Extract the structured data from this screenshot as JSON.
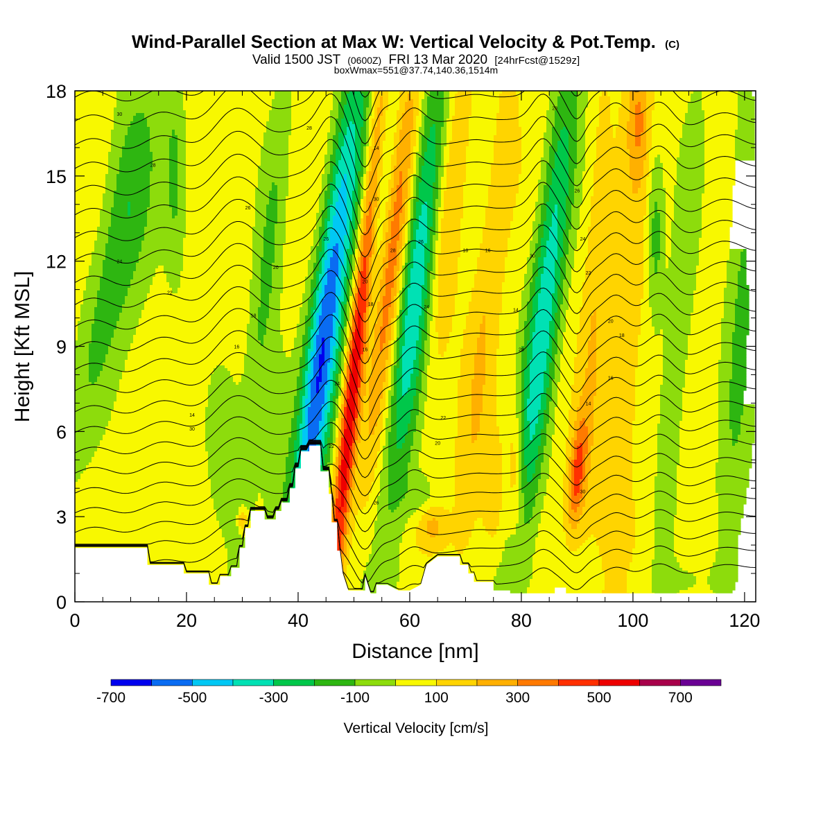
{
  "title": {
    "main": "Wind-Parallel Section at Max W: Vertical Velocity & Pot.Temp.",
    "main_tag": "(C)",
    "line2_a": "Valid 1500 JST",
    "line2_b": "(0600Z)",
    "line2_c": "FRI 13 Mar 2020",
    "line2_d": "[24hrFcst@1529z]",
    "line3": "boxWmax=551@37.74,140.36,1514m"
  },
  "colorbar": {
    "label": "Vertical Velocity [cm/s]",
    "tick_labels": [
      "-700",
      "-500",
      "-300",
      "-100",
      "100",
      "300",
      "500",
      "700"
    ],
    "colors": [
      "#0000ee",
      "#0a6cf2",
      "#00c8f4",
      "#00e1b4",
      "#00c74a",
      "#2eb611",
      "#8ddc0c",
      "#f8f800",
      "#ffd400",
      "#ffb000",
      "#ff7a00",
      "#ff3000",
      "#ee0000",
      "#a8004a",
      "#6a0094"
    ]
  },
  "chart_data": {
    "type": "heatmap",
    "xlabel": "Distance [nm]",
    "ylabel": "Height [Kft MSL]",
    "xlim": [
      0,
      122
    ],
    "ylim": [
      0,
      18
    ],
    "x_ticks": [
      0,
      20,
      40,
      60,
      80,
      100,
      120
    ],
    "y_ticks": [
      0,
      3,
      6,
      9,
      12,
      15,
      18
    ],
    "vertical_velocity_bins_cm_s": [
      -800,
      -700,
      -600,
      -500,
      -400,
      -300,
      -200,
      -100,
      0,
      100,
      200,
      300,
      400,
      500,
      600,
      700,
      800
    ],
    "max_w": {
      "value_cm_s": 551,
      "lat": 37.74,
      "lon": 140.36,
      "height_m": 1514
    },
    "terrain_kft": [
      [
        0,
        1.9
      ],
      [
        13,
        1.9
      ],
      [
        13,
        1.3
      ],
      [
        19.5,
        1.3
      ],
      [
        19.5,
        1.0
      ],
      [
        24,
        1.0
      ],
      [
        24,
        0.6
      ],
      [
        26,
        0.6
      ],
      [
        26,
        0.9
      ],
      [
        28,
        0.9
      ],
      [
        28,
        1.2
      ],
      [
        29.5,
        1.2
      ],
      [
        29.5,
        1.9
      ],
      [
        30.5,
        1.9
      ],
      [
        30.5,
        2.6
      ],
      [
        31.5,
        2.6
      ],
      [
        31.5,
        3.2
      ],
      [
        34,
        3.2
      ],
      [
        34,
        2.9
      ],
      [
        36,
        2.9
      ],
      [
        36,
        3.2
      ],
      [
        37,
        3.2
      ],
      [
        37,
        3.5
      ],
      [
        38.5,
        3.5
      ],
      [
        38.5,
        4.0
      ],
      [
        39.5,
        4.0
      ],
      [
        39.5,
        4.7
      ],
      [
        40.5,
        4.7
      ],
      [
        40.5,
        5.3
      ],
      [
        42,
        5.3
      ],
      [
        42,
        5.5
      ],
      [
        44,
        5.5
      ],
      [
        44,
        4.6
      ],
      [
        45.5,
        4.6
      ],
      [
        45.5,
        3.8
      ],
      [
        46,
        3.8
      ],
      [
        46,
        2.8
      ],
      [
        47,
        2.8
      ],
      [
        47,
        1.8
      ],
      [
        47.5,
        1.8
      ],
      [
        48,
        1.0
      ],
      [
        49,
        0.4
      ],
      [
        52,
        0.4
      ],
      [
        52,
        0.9
      ],
      [
        53,
        0.3
      ],
      [
        54,
        0.3
      ],
      [
        54,
        0.6
      ],
      [
        56,
        0.6
      ],
      [
        58,
        0.4
      ],
      [
        60,
        0.4
      ],
      [
        62,
        0.6
      ],
      [
        63,
        1.3
      ],
      [
        65,
        1.6
      ],
      [
        69,
        1.6
      ],
      [
        69,
        1.3
      ],
      [
        70.5,
        1.3
      ],
      [
        70.5,
        1.0
      ],
      [
        71.5,
        1.0
      ],
      [
        71.5,
        0.7
      ],
      [
        75,
        0.7
      ],
      [
        75,
        0.4
      ],
      [
        78,
        0.4
      ],
      [
        78,
        0.3
      ],
      [
        86,
        0.3
      ],
      [
        86,
        0.5
      ],
      [
        88,
        0.5
      ],
      [
        88,
        0.3
      ],
      [
        122,
        0.3
      ]
    ],
    "w_features": [
      {
        "x": 6,
        "y": 11,
        "w": 4,
        "ht": 7,
        "tilt": 1.0,
        "a": -160
      },
      {
        "x": 10,
        "y": 14,
        "w": 5,
        "ht": 5,
        "tilt": 0.0,
        "a": -130
      },
      {
        "x": 18,
        "y": 15,
        "w": 2,
        "ht": 4,
        "tilt": 0.0,
        "a": -160
      },
      {
        "x": 27,
        "y": 5,
        "w": 3,
        "ht": 3,
        "tilt": 0.0,
        "a": -140
      },
      {
        "x": 30,
        "y": 2.9,
        "w": 0.8,
        "ht": 0.4,
        "tilt": 0.0,
        "a": 240
      },
      {
        "x": 34,
        "y": 11,
        "w": 2.5,
        "ht": 8,
        "tilt": 0.5,
        "a": -170
      },
      {
        "x": 36,
        "y": 6,
        "w": 3,
        "ht": 4,
        "tilt": 0.0,
        "a": -120
      },
      {
        "x": 44.5,
        "y": 9,
        "w": 3,
        "ht": 10,
        "tilt": 0.62,
        "a": -640
      },
      {
        "x": 50.5,
        "y": 9,
        "w": 1.8,
        "ht": 10,
        "tilt": 0.5,
        "a": 760
      },
      {
        "x": 52.5,
        "y": 12,
        "w": 3,
        "ht": 8,
        "tilt": 0.55,
        "a": -340
      },
      {
        "x": 57,
        "y": 12,
        "w": 2.8,
        "ht": 7,
        "tilt": 0.55,
        "a": 420
      },
      {
        "x": 61,
        "y": 11.5,
        "w": 3.5,
        "ht": 8,
        "tilt": 0.55,
        "a": -480
      },
      {
        "x": 64,
        "y": 2.7,
        "w": 2.5,
        "ht": 0.8,
        "tilt": 0.0,
        "a": 170
      },
      {
        "x": 67,
        "y": 14,
        "w": 2.5,
        "ht": 6,
        "tilt": 0.5,
        "a": 200
      },
      {
        "x": 62,
        "y": 3.7,
        "w": 3,
        "ht": 0.8,
        "tilt": 0.0,
        "a": -120
      },
      {
        "x": 73,
        "y": 9,
        "w": 2.5,
        "ht": 9,
        "tilt": 0.5,
        "a": 130
      },
      {
        "x": 75,
        "y": 4,
        "w": 2,
        "ht": 2,
        "tilt": 0.0,
        "a": 130
      },
      {
        "x": 79,
        "y": 4.5,
        "w": 1.5,
        "ht": 2.5,
        "tilt": 0.0,
        "a": 230
      },
      {
        "x": 84,
        "y": 10,
        "w": 3,
        "ht": 9,
        "tilt": 0.55,
        "a": -430
      },
      {
        "x": 90,
        "y": 4.5,
        "w": 1.5,
        "ht": 2.0,
        "tilt": 0.4,
        "a": 360
      },
      {
        "x": 93,
        "y": 10,
        "w": 2,
        "ht": 8,
        "tilt": 0.2,
        "a": 130
      },
      {
        "x": 98,
        "y": 7,
        "w": 3,
        "ht": 10,
        "tilt": 0.3,
        "a": 130
      },
      {
        "x": 101,
        "y": 17,
        "w": 2,
        "ht": 2,
        "tilt": 0.0,
        "a": 200
      },
      {
        "x": 104,
        "y": 13,
        "w": 1.5,
        "ht": 3,
        "tilt": 0.0,
        "a": -210
      },
      {
        "x": 108,
        "y": 9,
        "w": 2.5,
        "ht": 9,
        "tilt": 0.4,
        "a": -150
      },
      {
        "x": 118,
        "y": 6,
        "w": 3,
        "ht": 8,
        "tilt": 0.2,
        "a": -130
      },
      {
        "x": 120,
        "y": 14,
        "w": 2.5,
        "ht": 6,
        "tilt": 0.0,
        "a": -120
      }
    ],
    "theta_contours_C": [
      -36,
      -34,
      -32,
      -30,
      -28,
      -26,
      -24,
      -22,
      -20,
      -18,
      -16,
      -14,
      -12,
      -10,
      -8,
      -6,
      -4,
      -2,
      0,
      2,
      4,
      6,
      8,
      10,
      12,
      14,
      16,
      18,
      20,
      22,
      24,
      26,
      28,
      30,
      32,
      34,
      36,
      38,
      40
    ],
    "theta_label_values": [
      "30",
      "28",
      "26",
      "24",
      "22",
      "20",
      "18",
      "16",
      "14"
    ]
  }
}
